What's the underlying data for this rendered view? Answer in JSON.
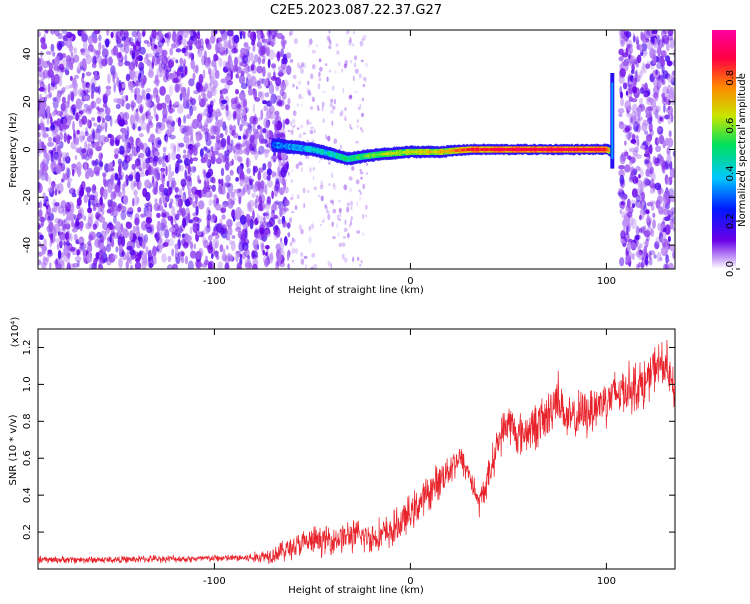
{
  "title": "C2E5.2023.087.22.37.G27",
  "chart_data": [
    {
      "type": "heatmap",
      "xlabel": "Height of straight line (km)",
      "ylabel": "Frequency (Hz)",
      "xlim": [
        -190,
        135
      ],
      "ylim": [
        -50,
        50
      ],
      "xticks": [
        -100,
        0,
        100
      ],
      "yticks": [
        -40,
        -20,
        0,
        20,
        40
      ],
      "colorbar": {
        "label": "Normalized spectral amplitude",
        "range": [
          0,
          1
        ],
        "ticks": [
          "0.0",
          "0.2",
          "0.4",
          "0.6",
          "0.8"
        ],
        "colors": [
          "#ffffff",
          "#6a00e8",
          "#0018ff",
          "#00c8ff",
          "#00e05a",
          "#c8e600",
          "#ff8a00",
          "#ff0040",
          "#ff00a0"
        ]
      },
      "noise_regions": [
        [
          -190,
          -62
        ],
        [
          107,
          135
        ]
      ],
      "signal_ridge": {
        "x": [
          -70,
          -60,
          -50,
          -40,
          -32,
          -25,
          -15,
          0,
          15,
          30,
          50,
          70,
          90,
          100,
          103
        ],
        "freq_hz": [
          2,
          1,
          0,
          -2,
          -4,
          -3,
          -2,
          -1,
          -1,
          0,
          0,
          0,
          0,
          0,
          -1
        ],
        "amplitude": [
          0.3,
          0.35,
          0.4,
          0.45,
          0.5,
          0.55,
          0.6,
          0.65,
          0.7,
          0.85,
          0.9,
          0.92,
          0.9,
          0.88,
          0.6
        ]
      },
      "vertical_feature": {
        "x": 103,
        "freq_range": [
          -8,
          32
        ]
      }
    },
    {
      "type": "line",
      "xlabel": "Height of straight line (km)",
      "ylabel": "SNR (10 * v/v)",
      "y_multiplier": "(x10⁴)",
      "xlim": [
        -190,
        135
      ],
      "ylim": [
        0,
        1.3
      ],
      "xticks": [
        -100,
        0,
        100
      ],
      "yticks": [
        0.2,
        0.4,
        0.6,
        0.8,
        1.0,
        1.2
      ],
      "ytick_labels": [
        "0.2",
        "0.4",
        "0.6",
        "0.8",
        "1.0",
        "1.2"
      ],
      "color": "#e8222a",
      "series": [
        {
          "x": [
            -190,
            -170,
            -150,
            -130,
            -110,
            -90,
            -80,
            -70,
            -60,
            -50,
            -40,
            -30,
            -20,
            -10,
            0,
            10,
            20,
            25,
            30,
            35,
            40,
            45,
            50,
            55,
            60,
            70,
            75,
            80,
            90,
            100,
            110,
            120,
            125,
            130,
            135
          ],
          "values": [
            0.05,
            0.05,
            0.05,
            0.055,
            0.055,
            0.06,
            0.06,
            0.08,
            0.12,
            0.15,
            0.16,
            0.18,
            0.17,
            0.2,
            0.3,
            0.42,
            0.55,
            0.6,
            0.52,
            0.35,
            0.5,
            0.7,
            0.8,
            0.72,
            0.75,
            0.82,
            0.95,
            0.8,
            0.85,
            0.92,
            0.98,
            1.0,
            1.1,
            1.1,
            0.95
          ],
          "noise": [
            0.02,
            0.02,
            0.02,
            0.02,
            0.02,
            0.02,
            0.03,
            0.05,
            0.07,
            0.08,
            0.08,
            0.09,
            0.09,
            0.1,
            0.1,
            0.1,
            0.1,
            0.08,
            0.08,
            0.07,
            0.1,
            0.1,
            0.12,
            0.12,
            0.12,
            0.14,
            0.14,
            0.12,
            0.14,
            0.14,
            0.14,
            0.14,
            0.12,
            0.16,
            0.1
          ]
        }
      ]
    }
  ]
}
